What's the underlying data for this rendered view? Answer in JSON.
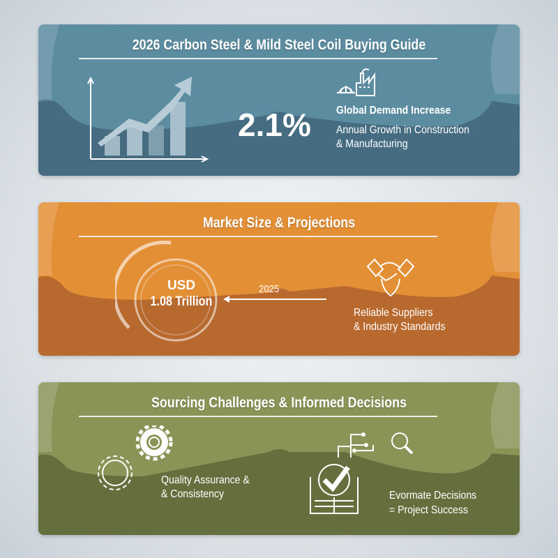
{
  "panels": [
    {
      "title": "2026 Carbon Steel & Mild Steel Coil Buying Guide",
      "stat": "2.1%",
      "heading": "Global Demand Increase",
      "lines": [
        "Annual Growth in Construction",
        "& Manufacturing"
      ],
      "colors": {
        "top": "#5b8ca0",
        "bottom": "#456c80"
      },
      "icons": [
        "growth-chart-icon",
        "factory-bridge-icon"
      ]
    },
    {
      "title": "Market Size & Projections",
      "circle_lines": [
        "USD",
        "1.08 Trillion"
      ],
      "arrow_label": "2025",
      "lines": [
        "Reliable Suppliers",
        "& Industry Standards"
      ],
      "colors": {
        "top": "#e38f36",
        "bottom": "#b8692e"
      },
      "icons": [
        "ring-gauge-icon",
        "handshake-shield-icon"
      ]
    },
    {
      "title": "Sourcing Challenges & Informed Decisions",
      "left_lines": [
        "Quality Assurance &",
        "& Consistency"
      ],
      "right_lines": [
        "Evormate Decisions",
        "= Project Success"
      ],
      "colors": {
        "top": "#8a9457",
        "bottom": "#646f3d"
      },
      "icons": [
        "gears-icon",
        "checklist-book-search-icon"
      ]
    }
  ]
}
